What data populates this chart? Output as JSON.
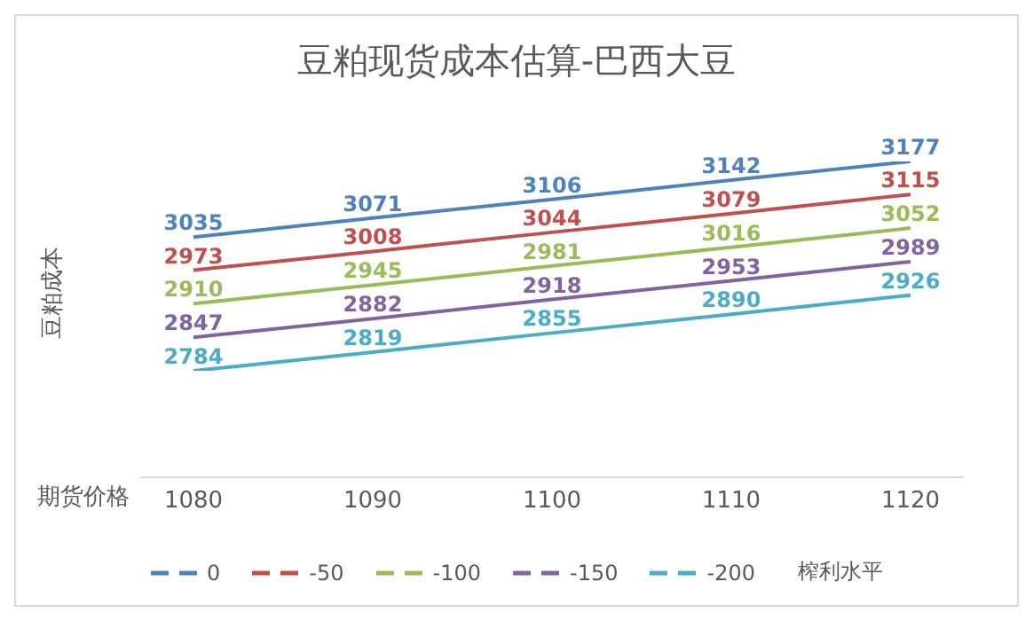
{
  "chart_data": {
    "type": "line",
    "title": "豆粕现货成本估算-巴西大豆",
    "xlabel": "期货价格",
    "ylabel": "豆粕成本",
    "legend_title": "榨利水平",
    "categories": [
      "1080",
      "1090",
      "1100",
      "1110",
      "1120"
    ],
    "series": [
      {
        "name": "0",
        "color": "#4f81bd",
        "values": [
          3035,
          3071,
          3106,
          3142,
          3177
        ]
      },
      {
        "name": "-50",
        "color": "#c0504d",
        "values": [
          2973,
          3008,
          3044,
          3079,
          3115
        ]
      },
      {
        "name": "-100",
        "color": "#9bbb59",
        "values": [
          2910,
          2945,
          2981,
          3016,
          3052
        ]
      },
      {
        "name": "-150",
        "color": "#8064a2",
        "values": [
          2847,
          2882,
          2918,
          2953,
          2989
        ]
      },
      {
        "name": "-200",
        "color": "#4bacc6",
        "values": [
          2784,
          2819,
          2855,
          2890,
          2926
        ]
      }
    ],
    "data_labels": true,
    "legend": "bottom",
    "grid": false,
    "marker": "none",
    "line_style": "solid"
  }
}
